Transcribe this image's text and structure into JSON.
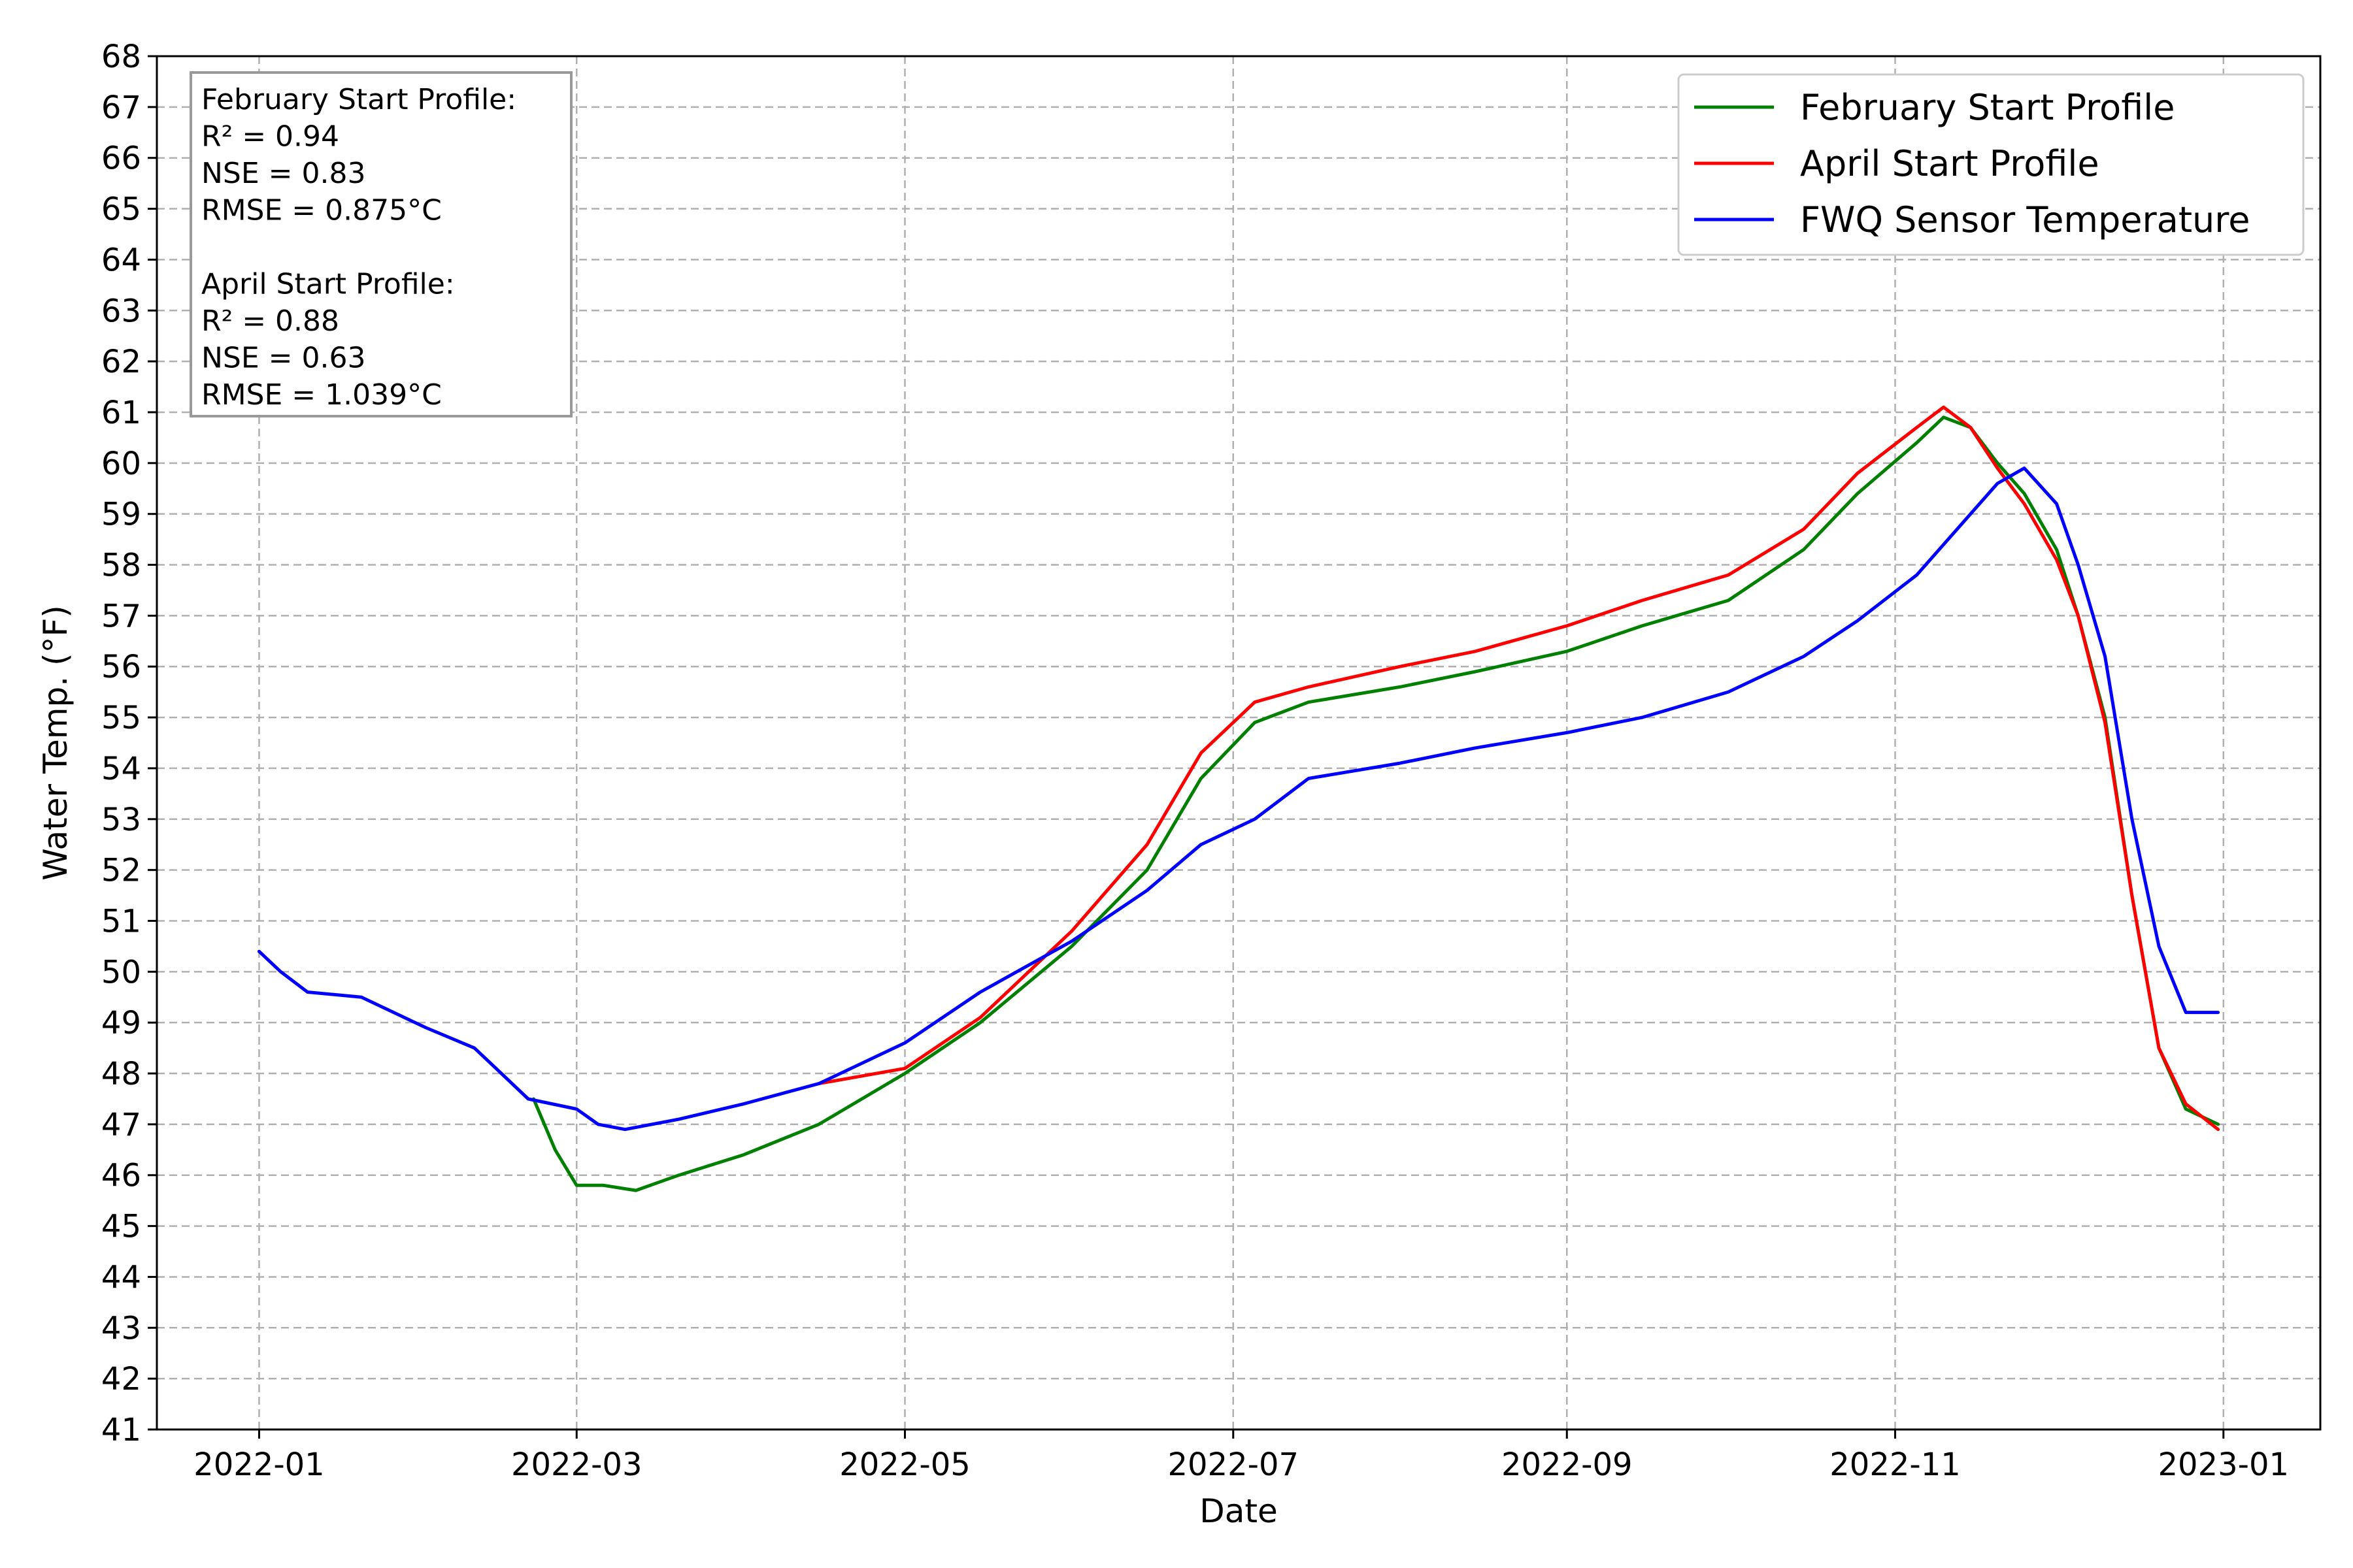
{
  "chart_data": {
    "type": "line",
    "title": "",
    "xlabel": "Date",
    "ylabel": "Water Temp. (°F)",
    "ylim": [
      41,
      68
    ],
    "xlim": [
      "2021-12-13",
      "2023-01-19"
    ],
    "grid": true,
    "legend_position": "top-right",
    "x_ticks": [
      "2022-01",
      "2022-03",
      "2022-05",
      "2022-07",
      "2022-09",
      "2022-11",
      "2023-01"
    ],
    "y_ticks": [
      41,
      42,
      43,
      44,
      45,
      46,
      47,
      48,
      49,
      50,
      51,
      52,
      53,
      54,
      55,
      56,
      57,
      58,
      59,
      60,
      61,
      62,
      63,
      64,
      65,
      66,
      67,
      68
    ],
    "stats_box": {
      "lines": [
        "February Start Profile:",
        "R² = 0.94",
        "NSE = 0.83",
        "RMSE = 0.875°C",
        "",
        "April Start Profile:",
        "R² = 0.88",
        "NSE = 0.63",
        "RMSE = 1.039°C"
      ]
    },
    "series": [
      {
        "name": "February Start Profile",
        "color": "#008000",
        "points": [
          [
            "2022-02-21",
            47.5
          ],
          [
            "2022-02-25",
            46.5
          ],
          [
            "2022-03-01",
            45.8
          ],
          [
            "2022-03-06",
            45.8
          ],
          [
            "2022-03-12",
            45.7
          ],
          [
            "2022-03-20",
            46.0
          ],
          [
            "2022-04-01",
            46.4
          ],
          [
            "2022-04-15",
            47.0
          ],
          [
            "2022-05-01",
            48.0
          ],
          [
            "2022-05-15",
            49.0
          ],
          [
            "2022-06-01",
            50.5
          ],
          [
            "2022-06-15",
            52.0
          ],
          [
            "2022-06-25",
            53.8
          ],
          [
            "2022-07-05",
            54.9
          ],
          [
            "2022-07-15",
            55.3
          ],
          [
            "2022-08-01",
            55.6
          ],
          [
            "2022-08-15",
            55.9
          ],
          [
            "2022-09-01",
            56.3
          ],
          [
            "2022-09-15",
            56.8
          ],
          [
            "2022-10-01",
            57.3
          ],
          [
            "2022-10-15",
            58.3
          ],
          [
            "2022-10-25",
            59.4
          ],
          [
            "2022-11-05",
            60.4
          ],
          [
            "2022-11-10",
            60.9
          ],
          [
            "2022-11-15",
            60.7
          ],
          [
            "2022-11-20",
            60.0
          ],
          [
            "2022-11-25",
            59.4
          ],
          [
            "2022-12-01",
            58.3
          ],
          [
            "2022-12-05",
            57.0
          ],
          [
            "2022-12-10",
            55.0
          ],
          [
            "2022-12-15",
            51.5
          ],
          [
            "2022-12-20",
            48.5
          ],
          [
            "2022-12-25",
            47.3
          ],
          [
            "2022-12-31",
            47.0
          ]
        ]
      },
      {
        "name": "April Start Profile",
        "color": "#ff0000",
        "points": [
          [
            "2022-04-15",
            47.8
          ],
          [
            "2022-05-01",
            48.1
          ],
          [
            "2022-05-15",
            49.1
          ],
          [
            "2022-06-01",
            50.8
          ],
          [
            "2022-06-15",
            52.5
          ],
          [
            "2022-06-25",
            54.3
          ],
          [
            "2022-07-05",
            55.3
          ],
          [
            "2022-07-15",
            55.6
          ],
          [
            "2022-08-01",
            56.0
          ],
          [
            "2022-08-15",
            56.3
          ],
          [
            "2022-09-01",
            56.8
          ],
          [
            "2022-09-15",
            57.3
          ],
          [
            "2022-10-01",
            57.8
          ],
          [
            "2022-10-15",
            58.7
          ],
          [
            "2022-10-25",
            59.8
          ],
          [
            "2022-11-05",
            60.7
          ],
          [
            "2022-11-10",
            61.1
          ],
          [
            "2022-11-15",
            60.7
          ],
          [
            "2022-11-20",
            59.9
          ],
          [
            "2022-11-25",
            59.2
          ],
          [
            "2022-12-01",
            58.1
          ],
          [
            "2022-12-05",
            57.0
          ],
          [
            "2022-12-10",
            54.9
          ],
          [
            "2022-12-15",
            51.5
          ],
          [
            "2022-12-20",
            48.5
          ],
          [
            "2022-12-25",
            47.4
          ],
          [
            "2022-12-31",
            46.9
          ]
        ]
      },
      {
        "name": "FWQ Sensor Temperature",
        "color": "#0000ff",
        "points": [
          [
            "2022-01-01",
            50.4
          ],
          [
            "2022-01-05",
            50.0
          ],
          [
            "2022-01-10",
            49.6
          ],
          [
            "2022-01-20",
            49.5
          ],
          [
            "2022-02-01",
            48.9
          ],
          [
            "2022-02-10",
            48.5
          ],
          [
            "2022-02-15",
            48.0
          ],
          [
            "2022-02-20",
            47.5
          ],
          [
            "2022-03-01",
            47.3
          ],
          [
            "2022-03-05",
            47.0
          ],
          [
            "2022-03-10",
            46.9
          ],
          [
            "2022-03-20",
            47.1
          ],
          [
            "2022-04-01",
            47.4
          ],
          [
            "2022-04-15",
            47.8
          ],
          [
            "2022-05-01",
            48.6
          ],
          [
            "2022-05-15",
            49.6
          ],
          [
            "2022-06-01",
            50.6
          ],
          [
            "2022-06-15",
            51.6
          ],
          [
            "2022-06-25",
            52.5
          ],
          [
            "2022-07-05",
            53.0
          ],
          [
            "2022-07-15",
            53.8
          ],
          [
            "2022-08-01",
            54.1
          ],
          [
            "2022-08-15",
            54.4
          ],
          [
            "2022-09-01",
            54.7
          ],
          [
            "2022-09-15",
            55.0
          ],
          [
            "2022-10-01",
            55.5
          ],
          [
            "2022-10-15",
            56.2
          ],
          [
            "2022-10-25",
            56.9
          ],
          [
            "2022-11-05",
            57.8
          ],
          [
            "2022-11-15",
            59.0
          ],
          [
            "2022-11-20",
            59.6
          ],
          [
            "2022-11-25",
            59.9
          ],
          [
            "2022-12-01",
            59.2
          ],
          [
            "2022-12-05",
            58.0
          ],
          [
            "2022-12-10",
            56.2
          ],
          [
            "2022-12-15",
            53.0
          ],
          [
            "2022-12-20",
            50.5
          ],
          [
            "2022-12-25",
            49.2
          ],
          [
            "2022-12-31",
            49.2
          ]
        ]
      }
    ]
  }
}
